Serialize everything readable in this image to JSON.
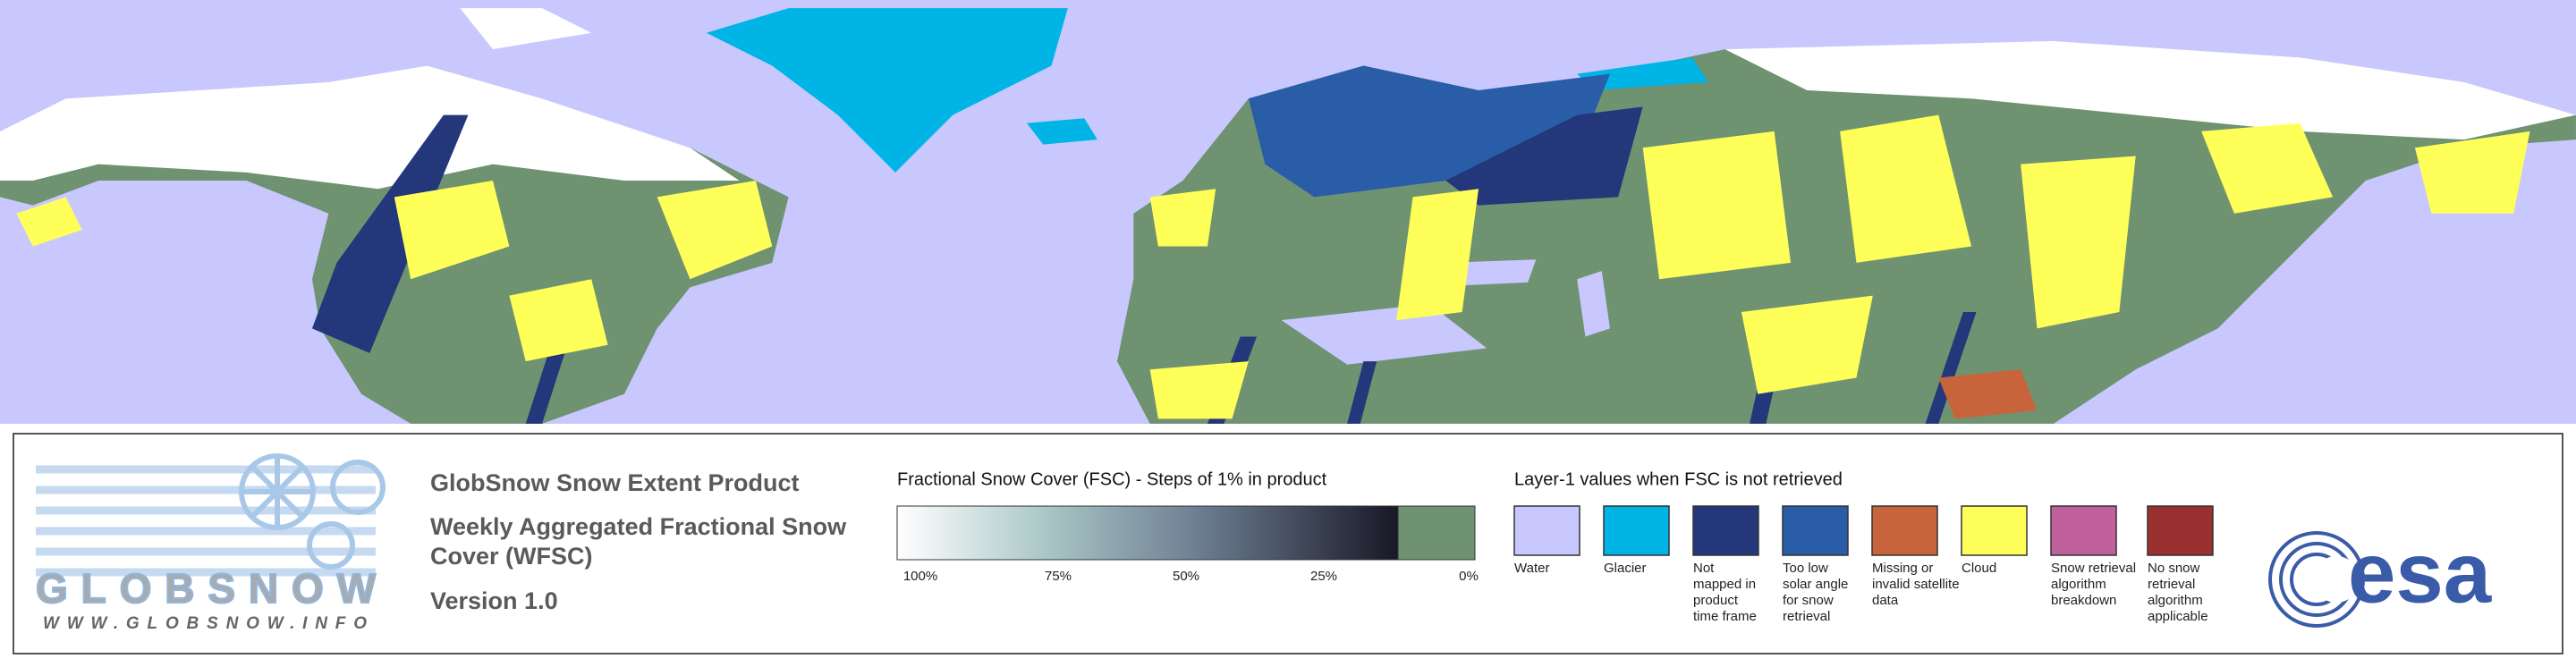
{
  "logo": {
    "wordmark": "GLOBSNOW",
    "url": "WWW.GLOBSNOW.INFO"
  },
  "product": {
    "title": "GlobSnow Snow Extent Product",
    "subtitle_lines": [
      "Weekly Aggregated Fractional Snow",
      "Cover (WFSC)"
    ],
    "version": "Version 1.0"
  },
  "fsc_scale": {
    "title": "Fractional Snow Cover (FSC) - Steps of 1% in product",
    "ticks": [
      "100%",
      "75%",
      "50%",
      "25%",
      "0%"
    ],
    "no_snow_color": "#6f9370"
  },
  "layer1": {
    "title": "Layer-1 values when FSC is not retrieved",
    "classes": [
      {
        "color": "#c8c8ff",
        "label": [
          "Water"
        ]
      },
      {
        "color": "#00b4e6",
        "label": [
          "Glacier"
        ]
      },
      {
        "color": "#23377a",
        "label": [
          "Not",
          "mapped in",
          "product",
          "time frame"
        ]
      },
      {
        "color": "#2a5da8",
        "label": [
          "Too low",
          "solar angle",
          "for snow",
          "retrieval"
        ]
      },
      {
        "color": "#c8643c",
        "label": [
          "Missing or",
          "invalid satellite",
          "data"
        ]
      },
      {
        "color": "#ffff5a",
        "label": [
          "Cloud"
        ]
      },
      {
        "color": "#c0609c",
        "label": [
          "Snow retrieval",
          "algorithm",
          "breakdown"
        ]
      },
      {
        "color": "#9a3030",
        "label": [
          "No snow",
          "retrieval",
          "algorithm",
          "applicable"
        ]
      }
    ]
  },
  "esa_logo": {
    "text": "esa"
  }
}
